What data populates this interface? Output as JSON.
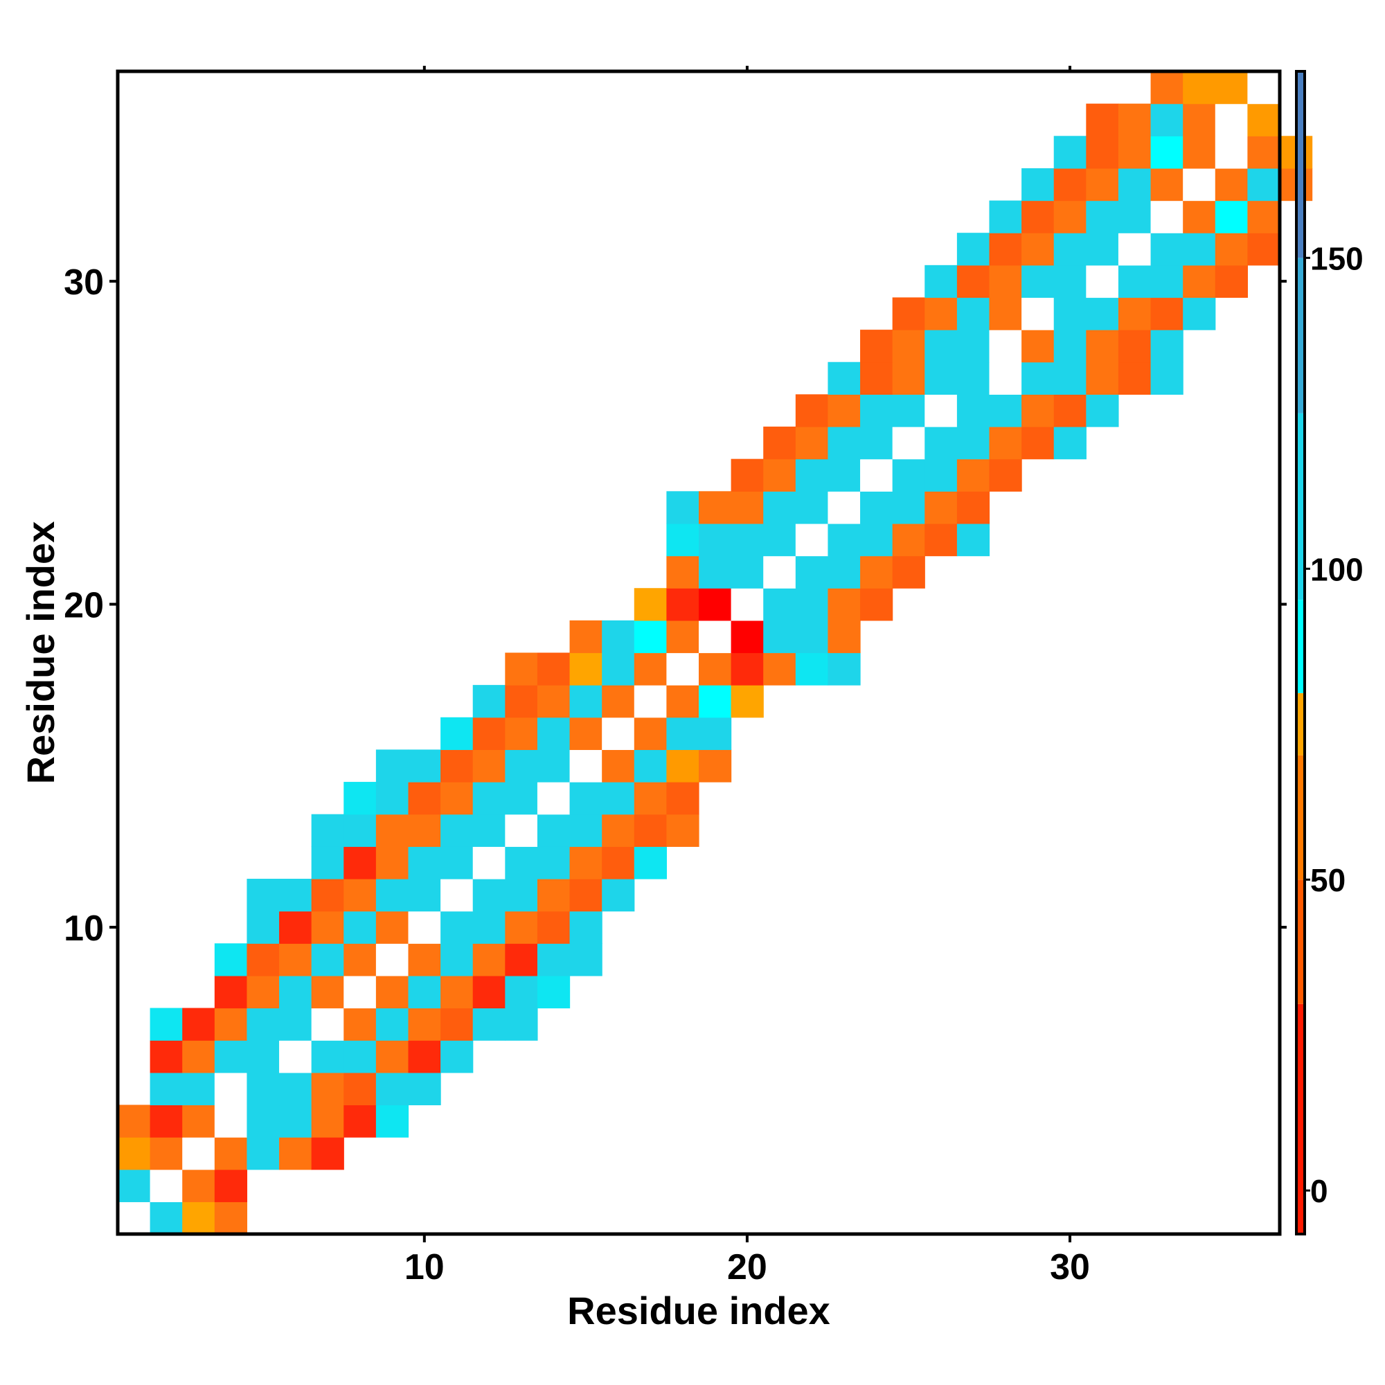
{
  "chart_data": {
    "type": "heatmap",
    "title": "",
    "xlabel": "Residue index",
    "ylabel": "Residue index",
    "xlim": [
      0.5,
      36.5
    ],
    "ylim": [
      0.5,
      36.5
    ],
    "x_ticks": [
      10,
      20,
      30
    ],
    "y_ticks": [
      10,
      20,
      30
    ],
    "x_tick_labels": [
      "10",
      "20",
      "30"
    ],
    "y_tick_labels": [
      "10",
      "20",
      "30"
    ],
    "colorbar": {
      "range": [
        -7,
        180
      ],
      "ticks": [
        0,
        50,
        100,
        150
      ],
      "tick_labels": [
        "0",
        "50",
        "100",
        "150"
      ],
      "bands": [
        {
          "from": -7,
          "to": 30,
          "color": "#ff1a00"
        },
        {
          "from": 30,
          "to": 50,
          "color": "#ff5a00"
        },
        {
          "from": 50,
          "to": 70,
          "color": "#ff7a00"
        },
        {
          "from": 70,
          "to": 80,
          "color": "#ffa500"
        },
        {
          "from": 80,
          "to": 95,
          "color": "#00ffff"
        },
        {
          "from": 95,
          "to": 125,
          "color": "#1ed5ea"
        },
        {
          "from": 125,
          "to": 150,
          "color": "#36aad6"
        },
        {
          "from": 150,
          "to": 180,
          "color": "#4a7fc1"
        }
      ]
    },
    "colors": {
      "self": "#ffffff",
      "red": "#ff2a0a",
      "deep_red": "#ff0000",
      "red_orange": "#ff5d0d",
      "orange": "#ff7410",
      "amber": "#ff9a00",
      "yellow_orange": "#ffa500",
      "cyan": "#1ed5ea",
      "bright_cyan": "#0ee6f2",
      "pure_cyan": "#00ffff",
      "blue": "#36aad6"
    },
    "matrix": {
      "1": [
        "W",
        "C",
        "Y",
        "O"
      ],
      "2": [
        "C",
        "W",
        "O",
        "R"
      ],
      "3": [
        "A",
        "O",
        "W",
        "O",
        "C",
        "O",
        "R"
      ],
      "4": [
        "O",
        "R",
        "O",
        "W",
        "C",
        "C",
        "O",
        "R",
        "B"
      ],
      "5": [
        "C",
        "C",
        "W",
        "C",
        "C",
        "O",
        "E",
        "C",
        "C"
      ],
      "6": [
        "R",
        "O",
        "C",
        "C",
        "W",
        "C",
        "C",
        "O",
        "R",
        "C"
      ],
      "7": [
        "B",
        "R",
        "O",
        "C",
        "C",
        "W",
        "O",
        "C",
        "O",
        "E",
        "C",
        "C"
      ],
      "8": [
        "R",
        "O",
        "C",
        "O",
        "W",
        "O",
        "C",
        "O",
        "R",
        "C",
        "B"
      ],
      "9": [
        "B",
        "E",
        "O",
        "C",
        "O",
        "W",
        "O",
        "C",
        "O",
        "R",
        "C",
        "C"
      ],
      "10": [
        "C",
        "R",
        "O",
        "C",
        "O",
        "W",
        "C",
        "C",
        "O",
        "E",
        "C"
      ],
      "11": [
        "C",
        "C",
        "E",
        "O",
        "C",
        "C",
        "W",
        "C",
        "C",
        "O",
        "E",
        "C"
      ],
      "12": [
        "C",
        "R",
        "O",
        "C",
        "C",
        "W",
        "C",
        "C",
        "O",
        "E",
        "B"
      ],
      "13": [
        "C",
        "C",
        "O",
        "O",
        "C",
        "C",
        "W",
        "C",
        "C",
        "O",
        "E",
        "O"
      ],
      "14": [
        "B",
        "C",
        "E",
        "O",
        "C",
        "C",
        "W",
        "C",
        "C",
        "O",
        "E"
      ],
      "15": [
        "C",
        "C",
        "E",
        "O",
        "C",
        "C",
        "W",
        "O",
        "C",
        "A",
        "O"
      ],
      "16": [
        "B",
        "E",
        "O",
        "C",
        "O",
        "W",
        "O",
        "C",
        "C"
      ],
      "17": [
        "C",
        "E",
        "O",
        "C",
        "O",
        "W",
        "O",
        "P",
        "Y"
      ],
      "18": [
        "O",
        "E",
        "Y",
        "C",
        "O",
        "W",
        "O",
        "R",
        "O",
        "B",
        "C"
      ],
      "19": [
        "O",
        "C",
        "P",
        "O",
        "W",
        "D",
        "C",
        "C",
        "O"
      ],
      "20": [
        "Y",
        "R",
        "D",
        "W",
        "C",
        "C",
        "O",
        "E"
      ],
      "21": [
        "O",
        "C",
        "C",
        "W",
        "C",
        "C",
        "O",
        "E"
      ],
      "22": [
        "B",
        "C",
        "C",
        "C",
        "W",
        "C",
        "C",
        "O",
        "E",
        "C"
      ],
      "23": [
        "C",
        "O",
        "O",
        "C",
        "C",
        "W",
        "C",
        "C",
        "O",
        "E"
      ],
      "24": [
        "E",
        "O",
        "C",
        "C",
        "W",
        "C",
        "C",
        "O",
        "E"
      ],
      "25": [
        "E",
        "O",
        "C",
        "C",
        "W",
        "C",
        "C",
        "O",
        "E",
        "C"
      ],
      "26": [
        "E",
        "O",
        "C",
        "C",
        "W",
        "C",
        "C",
        "O",
        "E",
        "C"
      ],
      "27": [
        "C",
        "E",
        "O",
        "C",
        "C",
        "W",
        "C",
        "C",
        "O",
        "E",
        "C"
      ],
      "28": [
        "E",
        "O",
        "C",
        "C",
        "W",
        "O",
        "C",
        "O",
        "E",
        "C"
      ],
      "29": [
        "E",
        "O",
        "C",
        "O",
        "W",
        "C",
        "C",
        "O",
        "E",
        "C"
      ],
      "30": [
        "C",
        "E",
        "O",
        "C",
        "C",
        "W",
        "C",
        "C",
        "O",
        "E"
      ],
      "31": [
        "C",
        "E",
        "O",
        "C",
        "C",
        "W",
        "C",
        "C",
        "O",
        "E"
      ],
      "32": [
        "C",
        "E",
        "O",
        "C",
        "C",
        "W",
        "O",
        "P",
        "O"
      ],
      "33": [
        "C",
        "E",
        "O",
        "C",
        "O",
        "W",
        "O",
        "C",
        "O"
      ],
      "34": [
        "C",
        "E",
        "O",
        "P",
        "O",
        "W",
        "O",
        "A"
      ],
      "35": [
        "E",
        "O",
        "C",
        "O",
        "W",
        "A"
      ],
      "36": [
        "O",
        "A",
        "A",
        "W"
      ]
    },
    "row_start": {
      "1": 1,
      "2": 1,
      "3": 1,
      "4": 1,
      "5": 2,
      "6": 2,
      "7": 2,
      "8": 4,
      "9": 4,
      "10": 5,
      "11": 5,
      "12": 7,
      "13": 7,
      "14": 8,
      "15": 9,
      "16": 11,
      "17": 12,
      "18": 13,
      "19": 15,
      "20": 17,
      "21": 18,
      "22": 18,
      "23": 18,
      "24": 20,
      "25": 21,
      "26": 22,
      "27": 23,
      "28": 24,
      "29": 25,
      "30": 26,
      "31": 27,
      "32": 28,
      "33": 29,
      "34": 30,
      "35": 31,
      "36": 33
    },
    "code_colors": {
      "W": "#ffffff",
      "R": "#ff2a0a",
      "D": "#ff0000",
      "E": "#ff5d0d",
      "O": "#ff7410",
      "A": "#ff9a00",
      "Y": "#ffa500",
      "C": "#1ed5ea",
      "B": "#0ee6f2",
      "P": "#00ffff",
      "L": "#36aad6"
    }
  }
}
